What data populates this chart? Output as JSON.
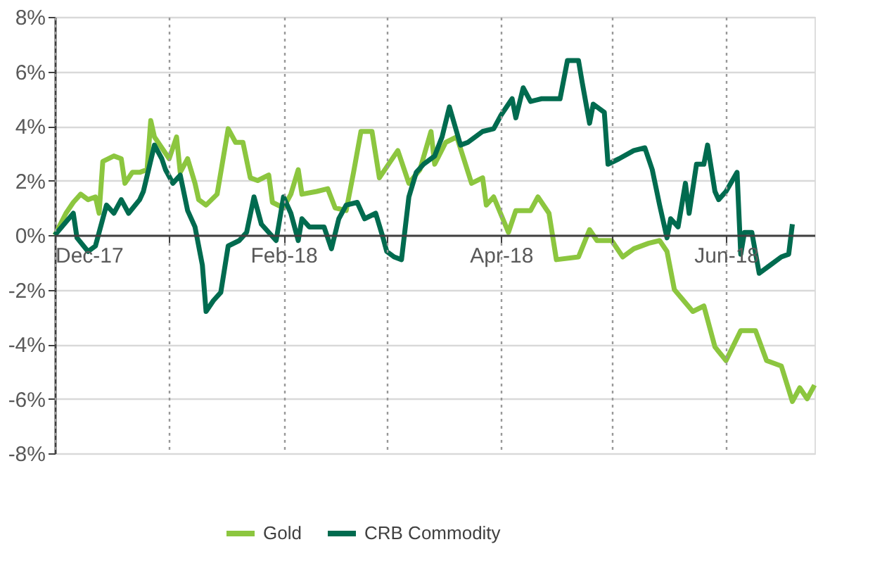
{
  "chart_data": {
    "type": "line",
    "xlim": [
      "2017-12-01",
      "2018-06-25"
    ],
    "xticks": [
      {
        "value": "2017-12-01",
        "label": "Dec-17"
      },
      {
        "value": "2018-01-01",
        "label": null
      },
      {
        "value": "2018-02-01",
        "label": "Feb-18"
      },
      {
        "value": "2018-03-01",
        "label": null
      },
      {
        "value": "2018-04-01",
        "label": "Apr-18"
      },
      {
        "value": "2018-05-01",
        "label": null
      },
      {
        "value": "2018-06-01",
        "label": "Jun-18"
      }
    ],
    "ylim": [
      -8,
      8
    ],
    "yticks": [
      {
        "value": -8,
        "label": "-8%"
      },
      {
        "value": -6,
        "label": "-6%"
      },
      {
        "value": -4,
        "label": "-4%"
      },
      {
        "value": -2,
        "label": "-2%"
      },
      {
        "value": 0,
        "label": "0%"
      },
      {
        "value": 2,
        "label": "2%"
      },
      {
        "value": 4,
        "label": "4%"
      },
      {
        "value": 6,
        "label": "6%"
      },
      {
        "value": 8,
        "label": "8%"
      }
    ],
    "grid": true,
    "legend": "bottom",
    "line_style": "solid",
    "marker": "none",
    "series": [
      {
        "name": "Gold",
        "color": "#8cc63f",
        "x": [
          "2017-12-01",
          "2017-12-04",
          "2017-12-06",
          "2017-12-08",
          "2017-12-10",
          "2017-12-12",
          "2017-12-13",
          "2017-12-14",
          "2017-12-17",
          "2017-12-19",
          "2017-12-20",
          "2017-12-22",
          "2017-12-24",
          "2017-12-26",
          "2017-12-27",
          "2017-12-28",
          "2017-12-30",
          "2018-01-01",
          "2018-01-03",
          "2018-01-04",
          "2018-01-06",
          "2018-01-08",
          "2018-01-09",
          "2018-01-11",
          "2018-01-14",
          "2018-01-17",
          "2018-01-19",
          "2018-01-21",
          "2018-01-23",
          "2018-01-25",
          "2018-01-28",
          "2018-01-29",
          "2018-02-01",
          "2018-02-03",
          "2018-02-05",
          "2018-02-06",
          "2018-02-10",
          "2018-02-13",
          "2018-02-15",
          "2018-02-18",
          "2018-02-20",
          "2018-02-22",
          "2018-02-25",
          "2018-02-27",
          "2018-03-01",
          "2018-03-04",
          "2018-03-07",
          "2018-03-10",
          "2018-03-13",
          "2018-03-14",
          "2018-03-17",
          "2018-03-20",
          "2018-03-24",
          "2018-03-27",
          "2018-03-28",
          "2018-03-30",
          "2018-04-03",
          "2018-04-05",
          "2018-04-09",
          "2018-04-11",
          "2018-04-14",
          "2018-04-16",
          "2018-04-22",
          "2018-04-25",
          "2018-04-27",
          "2018-05-01",
          "2018-05-04",
          "2018-05-07",
          "2018-05-11",
          "2018-05-14",
          "2018-05-16",
          "2018-05-18",
          "2018-05-23",
          "2018-05-26",
          "2018-05-29",
          "2018-06-01",
          "2018-06-05",
          "2018-06-09",
          "2018-06-12",
          "2018-06-16",
          "2018-06-19",
          "2018-06-21",
          "2018-06-23",
          "2018-06-25"
        ],
        "values": [
          0.0,
          0.8,
          1.2,
          1.5,
          1.3,
          1.4,
          0.8,
          2.7,
          2.9,
          2.8,
          1.9,
          2.3,
          2.3,
          2.4,
          4.2,
          3.6,
          3.2,
          2.8,
          3.6,
          2.3,
          2.8,
          1.9,
          1.3,
          1.1,
          1.5,
          3.9,
          3.4,
          3.4,
          2.1,
          2.0,
          2.2,
          1.2,
          1.0,
          1.5,
          2.4,
          1.5,
          1.6,
          1.7,
          1.0,
          0.9,
          2.3,
          3.8,
          3.8,
          2.1,
          2.5,
          3.1,
          1.9,
          2.4,
          3.8,
          2.6,
          3.4,
          3.6,
          1.9,
          2.1,
          1.1,
          1.4,
          0.1,
          0.9,
          0.9,
          1.4,
          0.8,
          -0.9,
          -0.8,
          0.2,
          -0.2,
          -0.2,
          -0.8,
          -0.5,
          -0.3,
          -0.2,
          -0.6,
          -2.0,
          -2.8,
          -2.6,
          -4.1,
          -4.6,
          -3.5,
          -3.5,
          -4.6,
          -4.8,
          -6.1,
          -5.6,
          -6.0,
          -5.5
        ]
      },
      {
        "name": "CRB Commodity",
        "color": "#006b4f",
        "x": [
          "2017-12-01",
          "2017-12-06",
          "2017-12-07",
          "2017-12-10",
          "2017-12-12",
          "2017-12-14",
          "2017-12-15",
          "2017-12-17",
          "2017-12-19",
          "2017-12-21",
          "2017-12-24",
          "2017-12-25",
          "2017-12-28",
          "2017-12-30",
          "2017-12-31",
          "2018-01-02",
          "2018-01-04",
          "2018-01-06",
          "2018-01-08",
          "2018-01-10",
          "2018-01-11",
          "2018-01-13",
          "2018-01-15",
          "2018-01-17",
          "2018-01-20",
          "2018-01-22",
          "2018-01-24",
          "2018-01-26",
          "2018-01-30",
          "2018-02-01",
          "2018-02-03",
          "2018-02-05",
          "2018-02-06",
          "2018-02-08",
          "2018-02-12",
          "2018-02-14",
          "2018-02-16",
          "2018-02-18",
          "2018-02-21",
          "2018-02-23",
          "2018-02-26",
          "2018-02-28",
          "2018-03-01",
          "2018-03-03",
          "2018-03-05",
          "2018-03-07",
          "2018-03-09",
          "2018-03-11",
          "2018-03-14",
          "2018-03-16",
          "2018-03-18",
          "2018-03-21",
          "2018-03-23",
          "2018-03-27",
          "2018-03-30",
          "2018-04-01",
          "2018-04-04",
          "2018-04-05",
          "2018-04-07",
          "2018-04-09",
          "2018-04-12",
          "2018-04-17",
          "2018-04-19",
          "2018-04-22",
          "2018-04-23",
          "2018-04-25",
          "2018-04-26",
          "2018-04-29",
          "2018-04-30",
          "2018-05-03",
          "2018-05-07",
          "2018-05-10",
          "2018-05-12",
          "2018-05-14",
          "2018-05-16",
          "2018-05-17",
          "2018-05-19",
          "2018-05-21",
          "2018-05-22",
          "2018-05-24",
          "2018-05-26",
          "2018-05-27",
          "2018-05-29",
          "2018-05-30",
          "2018-06-01",
          "2018-06-04",
          "2018-06-05",
          "2018-06-06",
          "2018-06-08",
          "2018-06-10",
          "2018-06-13",
          "2018-06-16",
          "2018-06-18",
          "2018-06-19"
        ],
        "values": [
          0.0,
          0.8,
          -0.1,
          -0.6,
          -0.4,
          0.6,
          1.1,
          0.8,
          1.3,
          0.8,
          1.3,
          1.6,
          3.3,
          2.8,
          2.4,
          1.9,
          2.2,
          0.9,
          0.3,
          -1.1,
          -2.8,
          -2.4,
          -2.1,
          -0.4,
          -0.2,
          0.1,
          1.4,
          0.4,
          -0.2,
          1.4,
          0.8,
          -0.2,
          0.6,
          0.3,
          0.3,
          -0.5,
          0.6,
          1.1,
          1.2,
          0.6,
          0.8,
          -0.1,
          -0.6,
          -0.8,
          -0.9,
          1.4,
          2.3,
          2.6,
          2.9,
          3.6,
          4.7,
          3.3,
          3.4,
          3.8,
          3.9,
          4.4,
          5.0,
          4.3,
          5.4,
          4.9,
          5.0,
          5.0,
          6.4,
          6.4,
          5.6,
          4.1,
          4.8,
          4.5,
          2.6,
          2.8,
          3.1,
          3.2,
          2.4,
          1.1,
          -0.1,
          0.6,
          0.3,
          1.9,
          0.8,
          2.6,
          2.6,
          3.3,
          1.6,
          1.3,
          1.6,
          2.3,
          -0.7,
          0.1,
          0.1,
          -1.4,
          -1.1,
          -0.8,
          -0.7,
          0.4
        ]
      }
    ]
  }
}
